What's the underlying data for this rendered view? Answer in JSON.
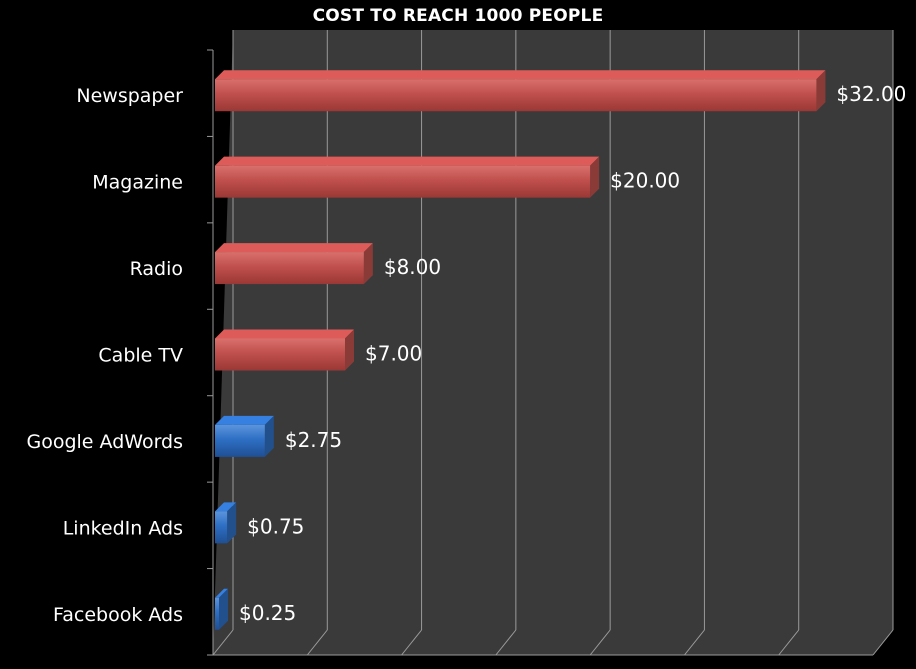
{
  "chart_data": {
    "type": "bar",
    "orientation": "horizontal",
    "title": "COST TO REACH 1000 PEOPLE",
    "xlabel": "",
    "ylabel": "",
    "xlim": [
      0,
      35
    ],
    "grid": true,
    "categories": [
      "Newspaper",
      "Magazine",
      "Radio",
      "Cable TV",
      "Google AdWords",
      "LinkedIn Ads",
      "Facebook Ads"
    ],
    "values": [
      32.0,
      20.0,
      8.0,
      7.0,
      2.75,
      0.75,
      0.25
    ],
    "value_labels": [
      "$32.00",
      "$20.00",
      "$8.00",
      "$7.00",
      "$2.75",
      "$0.75",
      "$0.25"
    ],
    "bar_colors": [
      "#c0504d",
      "#c0504d",
      "#c0504d",
      "#c0504d",
      "#2e6fc4",
      "#2e6fc4",
      "#2e6fc4"
    ],
    "background_color": "#000000",
    "plot_color": "#3a3a3a",
    "gridline_color": "#9a9a9a"
  }
}
